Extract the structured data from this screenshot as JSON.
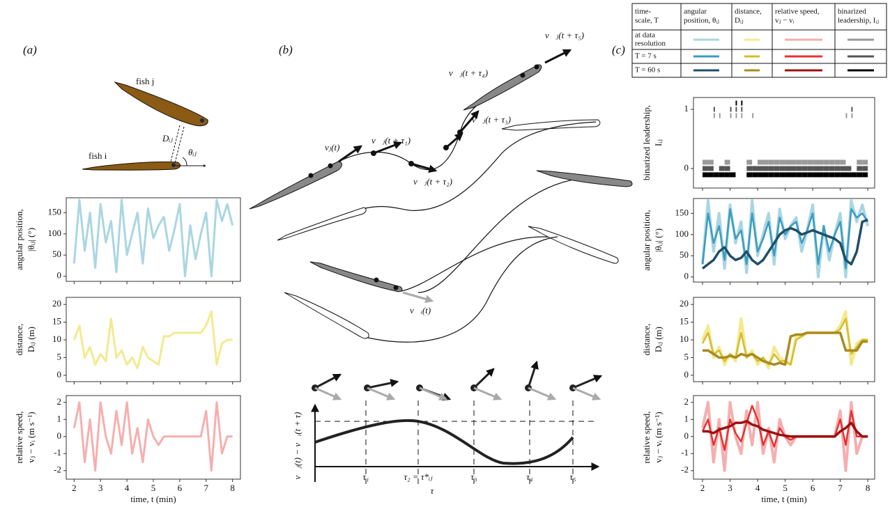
{
  "panel_labels": [
    "(a)",
    "(b)",
    "(c)"
  ],
  "panel_a": {
    "fish_j": "fish j",
    "fish_i": "fish i",
    "distance": "Dᵢⱼ",
    "angle": "θᵢⱼ"
  },
  "panel_b": {
    "vectors": [
      "vⱼ(t)",
      "v⃗ⱼ(t + τ₁)",
      "v⃗ⱼ(t + τ₂)",
      "v⃗ⱼ(t + τ₃)",
      "v⃗ⱼ(t + τ₄)",
      "v⃗ⱼ(t + τ₅)",
      "v⃗ᵢ(t)"
    ],
    "ylabel": "v⃗ⱼ(t) − v⃗ᵢ(t + τ)",
    "xlabel": "τ",
    "lags": [
      "τ₁",
      "τ₂ = τ*ᵢⱼ",
      "τ₃",
      "τ₄",
      "τ₅"
    ]
  },
  "table": {
    "header": [
      [
        "time-",
        "scale, T"
      ],
      [
        "angular",
        "position, θᵢⱼ"
      ],
      [
        "distance,",
        "Dᵢⱼ"
      ],
      [
        "relative speed,",
        "vⱼ − vᵢ"
      ],
      [
        "binarized",
        "leadership, Iᵢⱼ"
      ]
    ],
    "rows": [
      [
        "at data",
        "resolution"
      ],
      [
        "T = 7 s"
      ],
      [
        "T = 60 s"
      ]
    ]
  },
  "chart_data": [
    {
      "type": "line",
      "ylabel": [
        "angular position,",
        "|θᵢⱼ| (°)"
      ],
      "color": "#a9d6e2",
      "xlim": [
        1.7,
        8.3
      ],
      "xticks": [
        2,
        3,
        4,
        5,
        6,
        7,
        8
      ],
      "ylim": [
        -12,
        185
      ],
      "yticks": [
        0,
        50,
        100,
        150
      ],
      "x": [
        2,
        2.2,
        2.4,
        2.6,
        2.8,
        3,
        3.2,
        3.4,
        3.6,
        3.8,
        4,
        4.2,
        4.4,
        4.6,
        4.8,
        5,
        5.2,
        5.4,
        5.6,
        5.8,
        6,
        6.2,
        6.4,
        6.6,
        6.8,
        7,
        7.2,
        7.4,
        7.6,
        7.8,
        8
      ],
      "values": [
        30,
        180,
        60,
        150,
        20,
        170,
        80,
        130,
        10,
        180,
        50,
        100,
        150,
        30,
        160,
        90,
        120,
        140,
        60,
        110,
        170,
        0,
        120,
        40,
        100,
        150,
        0,
        180,
        130,
        170,
        120
      ]
    },
    {
      "type": "line",
      "ylabel": [
        "distance,",
        "Dᵢⱼ (m)"
      ],
      "color": "#f3ea8e",
      "xlim": [
        1.7,
        8.3
      ],
      "xticks": [
        2,
        3,
        4,
        5,
        6,
        7,
        8
      ],
      "ylim": [
        -1.8,
        22
      ],
      "yticks": [
        0,
        5,
        10,
        15,
        20
      ],
      "x": [
        2,
        2.2,
        2.4,
        2.6,
        2.8,
        3,
        3.2,
        3.4,
        3.6,
        3.8,
        4,
        4.2,
        4.4,
        4.6,
        4.8,
        5,
        5.2,
        5.4,
        5.6,
        5.8,
        6,
        6.2,
        6.4,
        6.6,
        6.8,
        7,
        7.2,
        7.4,
        7.6,
        7.8,
        8
      ],
      "values": [
        10,
        14,
        5,
        8,
        3,
        6,
        4,
        16,
        5,
        7,
        3,
        5,
        2,
        8,
        5,
        4,
        3,
        11,
        11,
        12,
        12,
        12,
        12,
        12,
        12,
        14,
        18,
        3,
        9,
        10,
        10
      ]
    },
    {
      "type": "line",
      "ylabel": [
        "relative speed,",
        "vⱼ − vᵢ (m s⁻¹)"
      ],
      "xlabel": "time, t (min)",
      "color": "#f7aeae",
      "xlim": [
        1.7,
        8.3
      ],
      "xticks": [
        2,
        3,
        4,
        5,
        6,
        7,
        8
      ],
      "ylim": [
        -2.5,
        2.4
      ],
      "yticks": [
        -2,
        -1,
        0,
        1,
        2
      ],
      "x": [
        2,
        2.2,
        2.4,
        2.6,
        2.8,
        3,
        3.2,
        3.4,
        3.6,
        3.8,
        4,
        4.2,
        4.4,
        4.6,
        4.8,
        5,
        5.2,
        5.4,
        5.6,
        5.8,
        6,
        6.2,
        6.4,
        6.6,
        6.8,
        7,
        7.2,
        7.4,
        7.6,
        7.8,
        8
      ],
      "values": [
        0.5,
        2,
        -1.5,
        1,
        -2,
        2,
        0,
        -1,
        1.5,
        -0.5,
        2,
        -1,
        0.5,
        -1.5,
        1,
        0,
        -0.5,
        0,
        0,
        0,
        0,
        0,
        0,
        0,
        0,
        1.5,
        -2,
        2,
        -1,
        0,
        0
      ]
    },
    {
      "type": "raster",
      "ylabel": [
        "binarized leadership,",
        "Iᵢⱼ"
      ],
      "xlim": [
        1.67,
        8.25
      ],
      "xticks": [
        2,
        3,
        4,
        5,
        6,
        7,
        8
      ],
      "ylim": [
        -0.33,
        1.2
      ],
      "yticks": [
        0,
        1
      ],
      "x": [
        2,
        2.2,
        2.4,
        2.6,
        2.8,
        3,
        3.2,
        3.4,
        3.6,
        3.8,
        4,
        4.2,
        4.4,
        4.6,
        4.8,
        5,
        5.2,
        5.4,
        5.6,
        5.8,
        6,
        6.2,
        6.4,
        6.6,
        6.8,
        7,
        7.2,
        7.4,
        7.6,
        7.8,
        8
      ],
      "series": [
        {
          "color": "#9a9a9a",
          "values": [
            0,
            0,
            1,
            1,
            0,
            1,
            1,
            1,
            0,
            1,
            0,
            0,
            0,
            0,
            0,
            0,
            0,
            0,
            0,
            0,
            0,
            0,
            0,
            0,
            0,
            0,
            1,
            1,
            0,
            0,
            0
          ]
        },
        {
          "color": "#555555",
          "values": [
            0,
            0,
            1,
            0,
            0,
            1,
            1,
            1,
            0,
            0,
            0,
            0,
            0,
            0,
            0,
            0,
            0,
            0,
            0,
            0,
            0,
            0,
            0,
            0,
            0,
            0,
            0,
            1,
            0,
            0,
            0
          ]
        },
        {
          "color": "#000000",
          "values": [
            0,
            0,
            0,
            0,
            0,
            0,
            1,
            1,
            0,
            0,
            0,
            0,
            0,
            0,
            0,
            0,
            0,
            0,
            0,
            0,
            0,
            0,
            0,
            0,
            0,
            0,
            0,
            0,
            0,
            0,
            0
          ]
        }
      ]
    },
    {
      "type": "line",
      "ylabel": [
        "angular position,",
        "|θᵢⱼ| (°)"
      ],
      "xlim": [
        1.67,
        8.25
      ],
      "xticks": [
        2,
        3,
        4,
        5,
        6,
        7,
        8
      ],
      "ylim": [
        -12,
        185
      ],
      "yticks": [
        0,
        50,
        100,
        150
      ],
      "x": [
        2,
        2.2,
        2.4,
        2.6,
        2.8,
        3,
        3.2,
        3.4,
        3.6,
        3.8,
        4,
        4.2,
        4.4,
        4.6,
        4.8,
        5,
        5.2,
        5.4,
        5.6,
        5.8,
        6,
        6.2,
        6.4,
        6.6,
        6.8,
        7,
        7.2,
        7.4,
        7.6,
        7.8,
        8
      ],
      "series": [
        {
          "color": "#a9d6e2",
          "values": [
            30,
            180,
            60,
            150,
            20,
            170,
            80,
            130,
            10,
            180,
            50,
            100,
            150,
            30,
            160,
            90,
            120,
            140,
            60,
            110,
            170,
            0,
            120,
            40,
            100,
            150,
            0,
            180,
            130,
            170,
            120
          ]
        },
        {
          "color": "#3a9cc0",
          "values": [
            30,
            150,
            80,
            120,
            40,
            160,
            90,
            110,
            30,
            150,
            60,
            90,
            130,
            50,
            140,
            100,
            120,
            130,
            80,
            110,
            150,
            30,
            120,
            60,
            100,
            130,
            20,
            160,
            140,
            150,
            130
          ]
        },
        {
          "color": "#1f4e68",
          "values": [
            20,
            30,
            40,
            60,
            70,
            50,
            40,
            45,
            60,
            40,
            30,
            40,
            60,
            80,
            100,
            110,
            115,
            110,
            100,
            105,
            110,
            105,
            100,
            95,
            90,
            80,
            40,
            30,
            60,
            130,
            135
          ]
        }
      ]
    },
    {
      "type": "line",
      "ylabel": [
        "distance,",
        "Dᵢⱼ (m)"
      ],
      "xlim": [
        1.67,
        8.25
      ],
      "xticks": [
        2,
        3,
        4,
        5,
        6,
        7,
        8
      ],
      "ylim": [
        -1.8,
        22
      ],
      "yticks": [
        0,
        5,
        10,
        15,
        20
      ],
      "x": [
        2,
        2.2,
        2.4,
        2.6,
        2.8,
        3,
        3.2,
        3.4,
        3.6,
        3.8,
        4,
        4.2,
        4.4,
        4.6,
        4.8,
        5,
        5.2,
        5.4,
        5.6,
        5.8,
        6,
        6.2,
        6.4,
        6.6,
        6.8,
        7,
        7.2,
        7.4,
        7.6,
        7.8,
        8
      ],
      "series": [
        {
          "color": "#f3ea8e",
          "values": [
            10,
            14,
            5,
            8,
            3,
            6,
            4,
            16,
            5,
            7,
            3,
            5,
            2,
            8,
            5,
            4,
            3,
            11,
            11,
            12,
            12,
            12,
            12,
            12,
            12,
            14,
            18,
            3,
            9,
            10,
            10
          ]
        },
        {
          "color": "#d8bb2a",
          "values": [
            9,
            12,
            6,
            7,
            4,
            6,
            5,
            12,
            5,
            6,
            4,
            5,
            3,
            6,
            4,
            4,
            3,
            10,
            11,
            12,
            12,
            12,
            12,
            12,
            12,
            13,
            16,
            6,
            8,
            10,
            10
          ]
        },
        {
          "color": "#a88b1f",
          "values": [
            7,
            7,
            6,
            5,
            5,
            5.5,
            5,
            6,
            5.5,
            6,
            5,
            4,
            3.5,
            3,
            3.5,
            3,
            11,
            11.5,
            11.5,
            12,
            12,
            12,
            12,
            12,
            12,
            12,
            7,
            7,
            7,
            9.5,
            9.5
          ]
        }
      ]
    },
    {
      "type": "line",
      "ylabel": [
        "relative speed,",
        "vⱼ − vᵢ (m s⁻¹)"
      ],
      "xlabel": "time, t (min)",
      "xlim": [
        1.67,
        8.25
      ],
      "xticks": [
        2,
        3,
        4,
        5,
        6,
        7,
        8
      ],
      "ylim": [
        -2.5,
        2.4
      ],
      "yticks": [
        -2,
        -1,
        0,
        1,
        2
      ],
      "x": [
        2,
        2.2,
        2.4,
        2.6,
        2.8,
        3,
        3.2,
        3.4,
        3.6,
        3.8,
        4,
        4.2,
        4.4,
        4.6,
        4.8,
        5,
        5.2,
        5.4,
        5.6,
        5.8,
        6,
        6.2,
        6.4,
        6.6,
        6.8,
        7,
        7.2,
        7.4,
        7.6,
        7.8,
        8
      ],
      "series": [
        {
          "color": "#f7aeae",
          "values": [
            0.5,
            2,
            -1.5,
            1,
            -2,
            2,
            0,
            -1,
            1.5,
            -0.5,
            2,
            -1,
            0.5,
            -1.5,
            1,
            0,
            -0.5,
            0,
            0,
            0,
            0,
            0,
            0,
            0,
            0,
            1.5,
            -2,
            2,
            -1,
            0,
            0
          ]
        },
        {
          "color": "#e83232",
          "values": [
            0.3,
            1,
            -0.5,
            0.5,
            -0.8,
            1,
            0.2,
            -0.3,
            0.8,
            1.8,
            1,
            -0.5,
            0.3,
            -0.6,
            0.5,
            0,
            -0.2,
            0,
            0,
            0,
            0,
            0,
            0,
            0,
            0,
            1,
            -0.5,
            1.5,
            0,
            0,
            0
          ]
        },
        {
          "color": "#9b1010",
          "values": [
            0.3,
            0.3,
            0.2,
            0.4,
            0.5,
            0.6,
            0.8,
            0.8,
            0.9,
            0.7,
            0.6,
            0.4,
            0.3,
            0.2,
            0.1,
            0.05,
            0,
            0,
            0,
            0,
            0,
            0,
            0,
            0,
            0,
            0.3,
            0.5,
            0.8,
            0.3,
            0,
            0
          ]
        }
      ]
    }
  ]
}
